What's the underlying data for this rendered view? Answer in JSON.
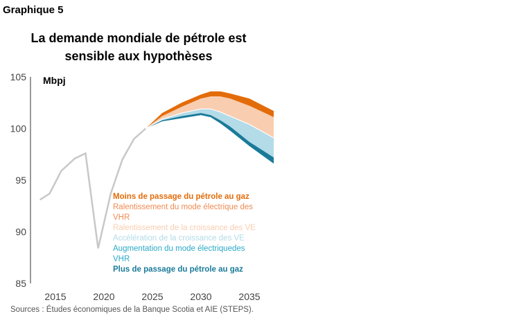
{
  "label": "Graphique 5",
  "source": "Sources : Études économiques de la Banque Scotia et AIE (STEPS).",
  "chart_data": {
    "type": "area",
    "title": "La demande mondiale de pétrole est sensible aux hypothèses",
    "ylabel": "Mbpj",
    "xlim": [
      2012.6,
      2037.5
    ],
    "ylim": [
      85,
      105
    ],
    "yticks": [
      85,
      90,
      95,
      100,
      105
    ],
    "xticks": [
      2015,
      2020,
      2025,
      2030,
      2035
    ],
    "grid": false,
    "legend_placement": "inside-bottom",
    "history": {
      "color": "#c8c8c8",
      "x": [
        2013.4,
        2014.4,
        2015.6,
        2017.0,
        2018.1,
        2019.4,
        2020.7,
        2021.9,
        2023.1,
        2024.3
      ],
      "y": [
        93.1,
        93.7,
        95.9,
        97.1,
        97.6,
        88.4,
        93.7,
        97.0,
        99.0,
        100.0
      ]
    },
    "projection_x": [
      2024.3,
      2026,
      2028,
      2030,
      2031,
      2032,
      2033,
      2035,
      2037.5
    ],
    "boundaries": {
      "top": [
        100.0,
        101.5,
        102.5,
        103.3,
        103.6,
        103.6,
        103.4,
        102.9,
        101.7
      ],
      "orange_low": [
        100.0,
        101.2,
        102.1,
        102.9,
        103.1,
        103.1,
        102.9,
        102.2,
        101.1
      ],
      "peach_low": [
        100.0,
        100.9,
        101.5,
        101.9,
        101.9,
        101.6,
        101.2,
        100.4,
        99.1
      ],
      "lightblue_low": [
        100.0,
        100.8,
        101.2,
        101.5,
        101.3,
        100.8,
        100.2,
        98.7,
        97.2
      ],
      "bottom": [
        100.0,
        100.7,
        101.0,
        101.3,
        101.1,
        100.5,
        99.8,
        98.3,
        96.6
      ]
    },
    "series": [
      {
        "name": "Moins de passage du pétrole au gaz",
        "color": "#e36c0a"
      },
      {
        "name": "Ralentissement du mode électrique des VHR",
        "color": "#f08a50"
      },
      {
        "name": "Ralentissement de la croissance des VE",
        "color": "#f9cdb0"
      },
      {
        "name": "Accélération de la croissance des VE",
        "color": "#b3dbe8"
      },
      {
        "name": "Augmentation du mode électriquedes VHR",
        "color": "#2aa9c8"
      },
      {
        "name": "Plus de passage du pétrole au gaz",
        "color": "#1a7a99"
      }
    ]
  }
}
